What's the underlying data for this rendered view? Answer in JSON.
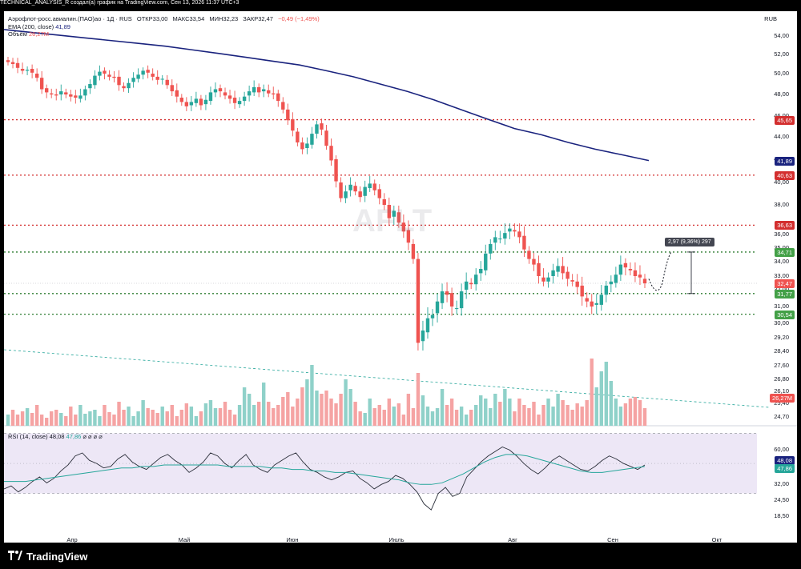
{
  "header": {
    "title": "TECHNICAL_ANALYSIS_R создал(а) график на TradingView.com, Сен 13, 2026 11:37 UTC+3",
    "symbol": "Аэрофлот-росс.авиалин.(ПАО)ао · 1Д · RUS",
    "open": "ОТКР33,00",
    "high": "МАКС33,54",
    "low": "МИН32,23",
    "close": "ЗАКР32,47",
    "change": "−0,49 (−1,49%)",
    "ema_label": "EMA (200, close)",
    "ema_value": "41,89",
    "volume_label": "Объём",
    "volume_value": "26,27M",
    "currency": "RUB",
    "watermark": "AFLT"
  },
  "rsi": {
    "label": "RSI (14, close)",
    "value1": "48,08",
    "value2": "47,86",
    "icons": "⌀ ⌀ ⌀ ⌀"
  },
  "annotation": "2,97 (9,36%) 297",
  "footer": {
    "brand": "TradingView"
  },
  "colors": {
    "up": "#26a69a",
    "down": "#ef5350",
    "vol_up": "#8fd1c9",
    "vol_down": "#f5a3a3",
    "ema": "#1a237e",
    "rsi": "#2a2e39",
    "rsi_ma": "#26a69a",
    "rsi_band": "#ede7f6",
    "red_line": "#d32f2f",
    "green_line": "#2e7d32"
  },
  "chart_data": {
    "type": "candlestick",
    "x_axis": [
      "Апр",
      "Май",
      "Июн",
      "Июль",
      "Авг",
      "Сен",
      "Окт"
    ],
    "y_ticks": [
      "54,00",
      "52,00",
      "50,00",
      "48,00",
      "46,00",
      "44,00",
      "42,00",
      "40,00",
      "38,00",
      "36,00",
      "35,00",
      "34,00",
      "33,00",
      "32,00",
      "31,00",
      "30,00",
      "29,20",
      "28,40",
      "27,60",
      "26,80",
      "26,10",
      "25,40",
      "24,70"
    ],
    "ylim": [
      24.5,
      55
    ],
    "price_levels": [
      {
        "label": "45,65",
        "value": 45.65,
        "color": "red"
      },
      {
        "label": "40,63",
        "value": 40.63,
        "color": "red"
      },
      {
        "label": "36,63",
        "value": 36.63,
        "color": "red"
      },
      {
        "label": "34,71",
        "value": 34.71,
        "color": "green"
      },
      {
        "label": "31,77",
        "value": 31.77,
        "color": "green"
      },
      {
        "label": "30,54",
        "value": 30.54,
        "color": "green"
      }
    ],
    "tags": [
      {
        "label": "41,89",
        "value": 41.89,
        "color": "#1a237e"
      },
      {
        "label": "32,47",
        "value": 32.47,
        "color": "#ef5350"
      },
      {
        "label": "26,27M",
        "value": 25.55,
        "color": "#ef5350"
      }
    ],
    "closes": [
      51.2,
      51.0,
      50.6,
      50.3,
      50.4,
      50.1,
      49.6,
      48.5,
      48.2,
      48.0,
      47.9,
      48.3,
      48.0,
      47.8,
      47.7,
      47.9,
      48.5,
      49.0,
      49.8,
      50.2,
      50.0,
      49.7,
      49.6,
      48.9,
      48.6,
      49.1,
      49.6,
      49.9,
      50.3,
      50.1,
      49.7,
      49.4,
      49.5,
      48.9,
      48.3,
      47.8,
      47.3,
      46.9,
      47.3,
      47.6,
      47.0,
      47.5,
      48.2,
      48.5,
      48.3,
      47.9,
      47.6,
      47.2,
      47.4,
      47.8,
      48.3,
      48.7,
      48.2,
      48.5,
      48.1,
      48.0,
      47.4,
      46.6,
      45.6,
      44.6,
      43.5,
      42.9,
      43.4,
      44.3,
      45.2,
      44.7,
      43.2,
      41.9,
      40.1,
      38.6,
      39.2,
      39.8,
      39.2,
      38.7,
      39.6,
      39.9,
      39.3,
      38.6,
      38.0,
      37.1,
      37.6,
      36.8,
      36.2,
      35.4,
      34.2,
      28.9,
      29.6,
      30.3,
      30.5,
      31.3,
      31.9,
      31.7,
      31.0,
      30.9,
      31.9,
      32.6,
      32.4,
      33.1,
      33.5,
      34.6,
      35.3,
      35.8,
      35.7,
      36.1,
      36.4,
      36.2,
      35.8,
      34.9,
      34.2,
      33.8,
      33.0,
      32.6,
      32.9,
      33.4,
      33.7,
      33.2,
      32.8,
      32.6,
      32.2,
      31.6,
      31.3,
      31.0,
      31.2,
      31.7,
      32.3,
      32.6,
      33.1,
      33.8,
      33.6,
      33.4,
      33.0,
      32.9,
      32.47
    ],
    "ema200": [
      54.7,
      54.4,
      54.1,
      53.8,
      53.5,
      53.2,
      52.9,
      52.5,
      52.1,
      51.7,
      51.3,
      50.9,
      50.3,
      49.7,
      49.0,
      48.3,
      47.5,
      46.6,
      45.7,
      44.8,
      44.2,
      43.5,
      42.9,
      42.4,
      41.89
    ],
    "rsi_values": [
      33,
      35,
      31,
      34,
      38,
      41,
      37,
      40,
      45,
      49,
      55,
      57,
      52,
      50,
      47,
      48,
      53,
      56,
      51,
      48,
      46,
      50,
      54,
      56,
      52,
      49,
      44,
      47,
      51,
      57,
      55,
      50,
      47,
      52,
      56,
      49,
      46,
      44,
      49,
      52,
      55,
      57,
      51,
      46,
      44,
      41,
      39,
      41,
      44,
      45,
      40,
      37,
      33,
      36,
      38,
      42,
      40,
      36,
      31,
      23,
      19,
      30,
      34,
      28,
      30,
      41,
      46,
      51,
      55,
      58,
      61,
      59,
      55,
      50,
      46,
      43,
      47,
      52,
      55,
      52,
      49,
      46,
      45,
      48,
      52,
      55,
      53,
      50,
      48,
      46,
      49
    ],
    "rsi_ma": [
      38,
      38,
      38,
      39,
      40,
      41,
      42,
      43,
      44,
      45,
      46,
      47,
      47,
      48,
      48,
      49,
      49,
      49,
      49,
      49,
      49,
      48,
      48,
      48,
      48,
      47,
      47,
      46,
      46,
      45,
      45,
      44,
      44,
      43,
      42,
      41,
      40,
      39,
      37,
      36,
      36,
      37,
      40,
      43,
      47,
      51,
      54,
      56,
      56,
      55,
      53,
      51,
      49,
      47,
      45,
      44,
      44,
      45,
      46,
      47,
      48
    ],
    "rsi_ticks": [
      "60,00",
      "48,08",
      "47,86",
      "32,00",
      "24,50",
      "18,50"
    ]
  }
}
